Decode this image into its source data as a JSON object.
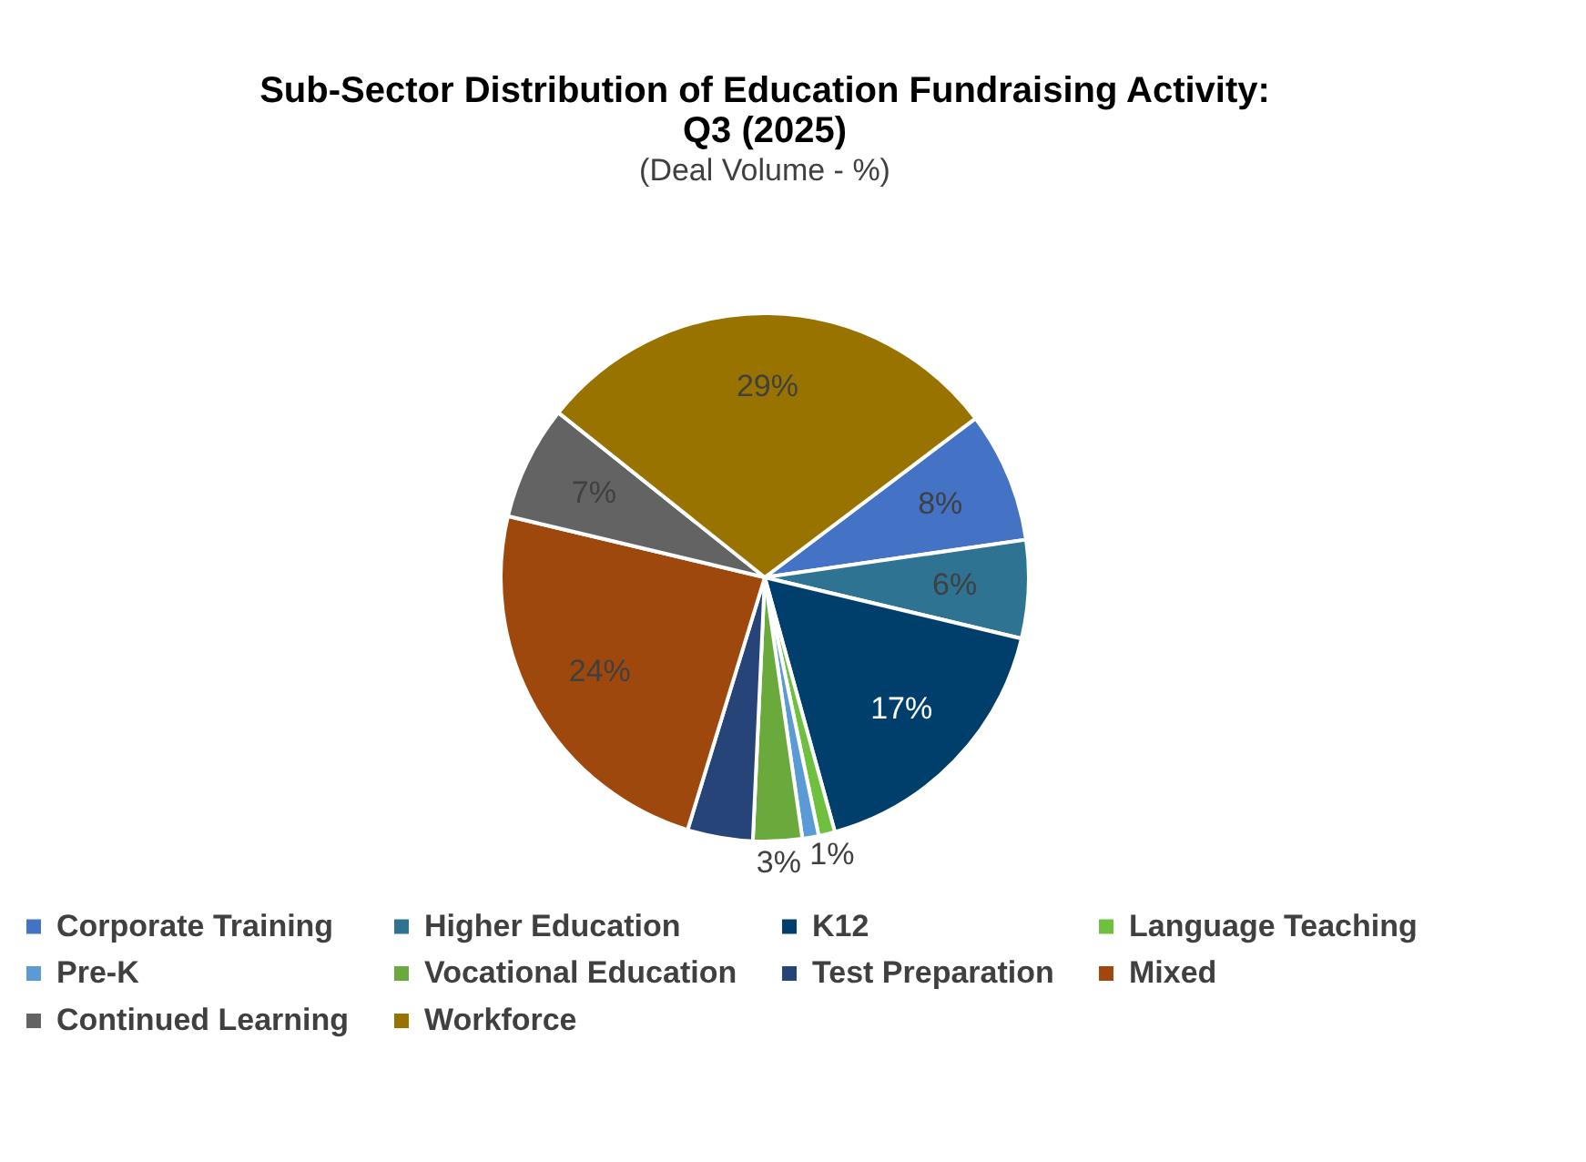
{
  "chart_data": {
    "type": "pie",
    "title": "Sub-Sector Distribution of Education Fundraising Activity: Q3 (2025)",
    "subtitle": "(Deal Volume - %)",
    "categories": [
      "Corporate Training",
      "Higher Education",
      "K12",
      "Language Teaching",
      "Pre-K",
      "Vocational Education",
      "Test Preparation",
      "Mixed",
      "Continued Learning",
      "Workforce"
    ],
    "values": [
      8,
      6,
      17,
      1,
      1,
      3,
      4,
      24,
      7,
      29
    ],
    "value_labels": [
      "8%",
      "6%",
      "17%",
      "1%",
      null,
      "3%",
      null,
      "24%",
      "7%",
      "29%"
    ],
    "colors": [
      "#4472c4",
      "#2e7391",
      "#003f6b",
      "#70c040",
      "#5b9bd5",
      "#6aaa3c",
      "#264478",
      "#9e480e",
      "#636363",
      "#997300"
    ],
    "legend": "bottom"
  }
}
